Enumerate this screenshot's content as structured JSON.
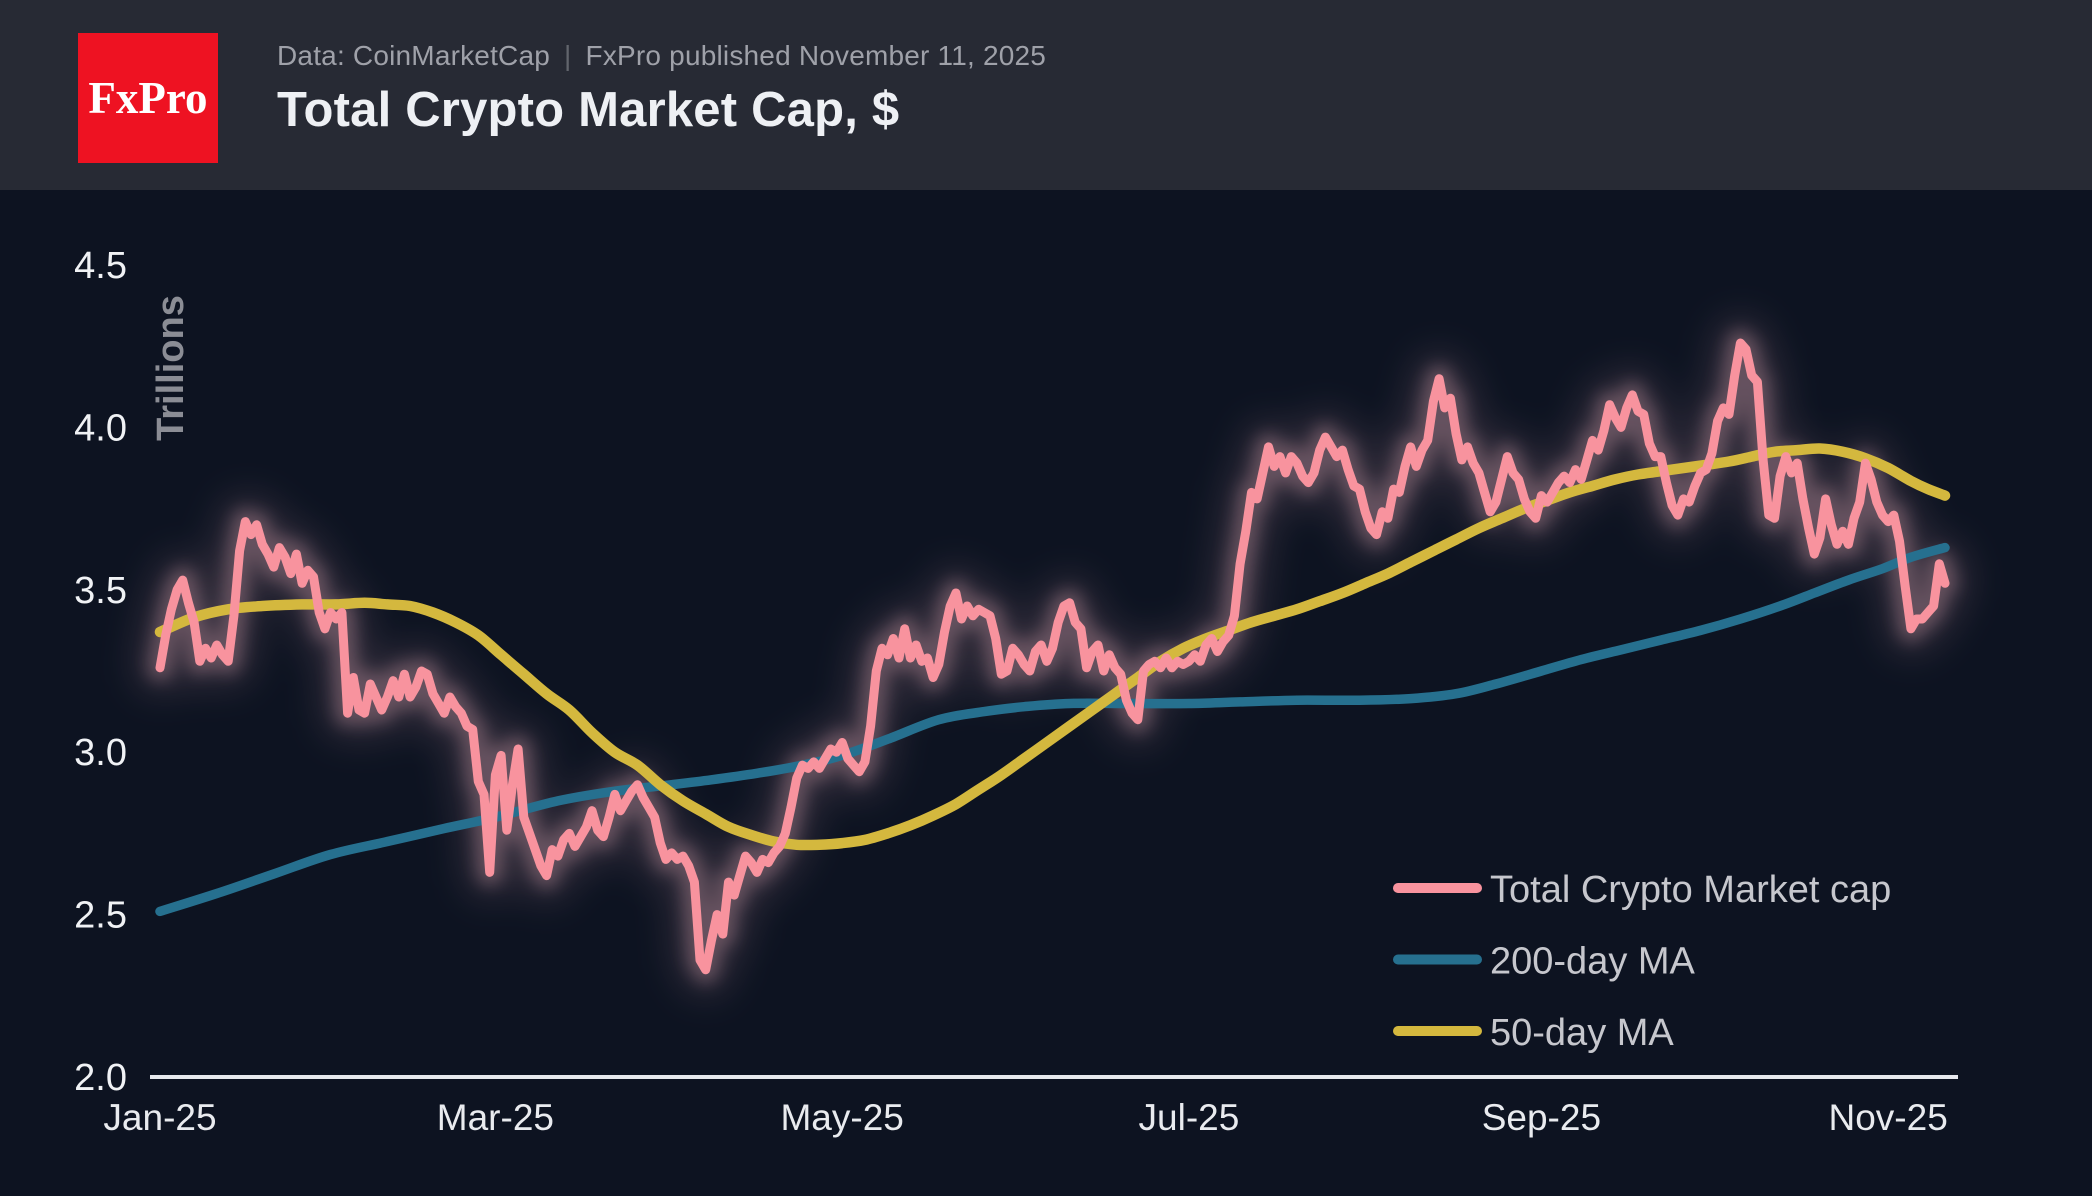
{
  "header": {
    "logo_text": "FxPro",
    "source": {
      "data_source": "Data: CoinMarketCap",
      "separator": "|",
      "published": "FxPro published November 11, 2025"
    },
    "title": "Total Crypto Market Cap, $"
  },
  "legend": {
    "items": [
      {
        "label": "Total Crypto Market cap",
        "color": "#f8939e"
      },
      {
        "label": "200-day MA",
        "color": "#26708f"
      },
      {
        "label": "50-day MA",
        "color": "#d4b83e"
      }
    ]
  },
  "colors": {
    "header_bg": "#272a34",
    "chart_bg": "#0d1321",
    "logo_red": "#ee1222",
    "market_cap_line": "#f8939e",
    "market_cap_glow": "#e3a9b6",
    "ma200_line": "#26708f",
    "ma50_line": "#d4b83e",
    "axis_line": "#e7e9ee",
    "y_tick_text": "#f0f2f5",
    "x_tick_text": "#e9ebef",
    "y_axis_title_text": "#8b8d95",
    "legend_text": "#c6c7cd"
  },
  "chart_data": {
    "type": "line",
    "title": "Total Crypto Market Cap, $",
    "ylabel": "Trillions",
    "units": "trillions USD",
    "x_start_date": "2025-01-01",
    "x_end_date": "2025-11-11",
    "total_days": 315,
    "ylim": [
      2.0,
      4.5
    ],
    "y_ticks": [
      4.5,
      4.0,
      3.5,
      3.0,
      2.5,
      2.0
    ],
    "x_tick_labels": [
      "Jan-25",
      "Mar-25",
      "May-25",
      "Jul-25",
      "Sep-25",
      "Nov-25"
    ],
    "x_tick_day_offsets": [
      0,
      59,
      120,
      181,
      243,
      304
    ],
    "grid": false,
    "legend_position": "bottom-right",
    "series": [
      {
        "name": "Total Crypto Market cap",
        "color": "#f8939e",
        "sampling": "daily",
        "values": [
          3.26,
          3.36,
          3.44,
          3.5,
          3.53,
          3.46,
          3.4,
          3.28,
          3.32,
          3.29,
          3.33,
          3.3,
          3.28,
          3.42,
          3.62,
          3.71,
          3.67,
          3.7,
          3.64,
          3.61,
          3.57,
          3.63,
          3.6,
          3.55,
          3.61,
          3.52,
          3.56,
          3.54,
          3.43,
          3.38,
          3.43,
          3.41,
          3.43,
          3.12,
          3.23,
          3.13,
          3.12,
          3.21,
          3.17,
          3.13,
          3.17,
          3.22,
          3.17,
          3.24,
          3.17,
          3.2,
          3.25,
          3.24,
          3.18,
          3.15,
          3.12,
          3.17,
          3.14,
          3.12,
          3.08,
          3.07,
          2.91,
          2.87,
          2.63,
          2.93,
          2.99,
          2.76,
          2.9,
          3.01,
          2.8,
          2.75,
          2.7,
          2.65,
          2.62,
          2.7,
          2.68,
          2.73,
          2.75,
          2.71,
          2.74,
          2.77,
          2.82,
          2.76,
          2.74,
          2.8,
          2.87,
          2.82,
          2.85,
          2.88,
          2.9,
          2.86,
          2.83,
          2.8,
          2.72,
          2.67,
          2.69,
          2.67,
          2.68,
          2.65,
          2.6,
          2.36,
          2.33,
          2.42,
          2.5,
          2.44,
          2.6,
          2.56,
          2.62,
          2.68,
          2.66,
          2.63,
          2.67,
          2.66,
          2.69,
          2.71,
          2.75,
          2.83,
          2.92,
          2.96,
          2.95,
          2.97,
          2.95,
          2.98,
          3.01,
          3.0,
          3.03,
          2.98,
          2.96,
          2.94,
          2.97,
          3.08,
          3.25,
          3.32,
          3.3,
          3.35,
          3.29,
          3.38,
          3.29,
          3.33,
          3.28,
          3.29,
          3.23,
          3.27,
          3.37,
          3.45,
          3.49,
          3.41,
          3.45,
          3.42,
          3.44,
          3.43,
          3.42,
          3.35,
          3.24,
          3.25,
          3.32,
          3.3,
          3.27,
          3.25,
          3.31,
          3.33,
          3.28,
          3.32,
          3.4,
          3.45,
          3.46,
          3.4,
          3.38,
          3.26,
          3.31,
          3.33,
          3.25,
          3.3,
          3.26,
          3.24,
          3.16,
          3.12,
          3.1,
          3.25,
          3.27,
          3.28,
          3.26,
          3.29,
          3.26,
          3.28,
          3.27,
          3.28,
          3.3,
          3.28,
          3.33,
          3.35,
          3.31,
          3.34,
          3.36,
          3.42,
          3.58,
          3.68,
          3.8,
          3.78,
          3.86,
          3.94,
          3.88,
          3.91,
          3.86,
          3.91,
          3.89,
          3.85,
          3.83,
          3.86,
          3.93,
          3.97,
          3.94,
          3.91,
          3.93,
          3.87,
          3.82,
          3.81,
          3.74,
          3.69,
          3.67,
          3.74,
          3.72,
          3.81,
          3.8,
          3.88,
          3.94,
          3.88,
          3.93,
          3.96,
          4.08,
          4.15,
          4.06,
          4.09,
          3.98,
          3.9,
          3.94,
          3.89,
          3.86,
          3.8,
          3.74,
          3.77,
          3.84,
          3.91,
          3.86,
          3.84,
          3.78,
          3.74,
          3.72,
          3.79,
          3.77,
          3.8,
          3.83,
          3.85,
          3.83,
          3.87,
          3.84,
          3.9,
          3.96,
          3.93,
          3.99,
          4.07,
          4.03,
          4.0,
          4.06,
          4.1,
          4.05,
          4.04,
          3.95,
          3.91,
          3.91,
          3.83,
          3.76,
          3.73,
          3.78,
          3.77,
          3.82,
          3.86,
          3.87,
          3.92,
          4.02,
          4.06,
          4.04,
          4.16,
          4.26,
          4.24,
          4.16,
          4.14,
          3.9,
          3.73,
          3.72,
          3.85,
          3.91,
          3.86,
          3.89,
          3.78,
          3.69,
          3.61,
          3.66,
          3.78,
          3.7,
          3.64,
          3.68,
          3.64,
          3.72,
          3.77,
          3.89,
          3.84,
          3.77,
          3.73,
          3.71,
          3.73,
          3.65,
          3.51,
          3.38,
          3.41,
          3.41,
          3.43,
          3.45,
          3.58,
          3.52
        ]
      },
      {
        "name": "200-day MA",
        "color": "#26708f",
        "sampling": "day-offset points [day, value]",
        "points": [
          [
            0,
            2.51
          ],
          [
            10,
            2.565
          ],
          [
            20,
            2.625
          ],
          [
            30,
            2.685
          ],
          [
            40,
            2.725
          ],
          [
            50,
            2.765
          ],
          [
            59,
            2.8
          ],
          [
            70,
            2.85
          ],
          [
            80,
            2.88
          ],
          [
            90,
            2.9
          ],
          [
            97,
            2.915
          ],
          [
            105,
            2.935
          ],
          [
            113,
            2.96
          ],
          [
            120,
            2.99
          ],
          [
            128,
            3.04
          ],
          [
            137,
            3.1
          ],
          [
            145,
            3.125
          ],
          [
            152,
            3.14
          ],
          [
            160,
            3.15
          ],
          [
            170,
            3.15
          ],
          [
            181,
            3.15
          ],
          [
            190,
            3.155
          ],
          [
            200,
            3.16
          ],
          [
            211,
            3.16
          ],
          [
            220,
            3.165
          ],
          [
            228,
            3.18
          ],
          [
            235,
            3.21
          ],
          [
            243,
            3.25
          ],
          [
            250,
            3.285
          ],
          [
            257,
            3.315
          ],
          [
            264,
            3.345
          ],
          [
            271,
            3.375
          ],
          [
            278,
            3.41
          ],
          [
            285,
            3.45
          ],
          [
            291,
            3.49
          ],
          [
            297,
            3.53
          ],
          [
            303,
            3.565
          ],
          [
            308,
            3.6
          ],
          [
            314,
            3.63
          ]
        ]
      },
      {
        "name": "50-day MA",
        "color": "#d4b83e",
        "sampling": "day-offset points [day, value]",
        "points": [
          [
            0,
            3.37
          ],
          [
            6,
            3.415
          ],
          [
            12,
            3.44
          ],
          [
            18,
            3.45
          ],
          [
            25,
            3.455
          ],
          [
            31,
            3.455
          ],
          [
            36,
            3.46
          ],
          [
            40,
            3.455
          ],
          [
            44,
            3.45
          ],
          [
            48,
            3.43
          ],
          [
            52,
            3.4
          ],
          [
            56,
            3.36
          ],
          [
            60,
            3.3
          ],
          [
            64,
            3.24
          ],
          [
            68,
            3.18
          ],
          [
            72,
            3.13
          ],
          [
            76,
            3.06
          ],
          [
            80,
            3.0
          ],
          [
            84,
            2.96
          ],
          [
            88,
            2.9
          ],
          [
            92,
            2.85
          ],
          [
            96,
            2.81
          ],
          [
            100,
            2.77
          ],
          [
            104,
            2.745
          ],
          [
            108,
            2.725
          ],
          [
            112,
            2.715
          ],
          [
            116,
            2.715
          ],
          [
            120,
            2.72
          ],
          [
            124,
            2.73
          ],
          [
            128,
            2.75
          ],
          [
            132,
            2.775
          ],
          [
            136,
            2.805
          ],
          [
            140,
            2.84
          ],
          [
            144,
            2.885
          ],
          [
            148,
            2.93
          ],
          [
            152,
            2.98
          ],
          [
            156,
            3.03
          ],
          [
            160,
            3.08
          ],
          [
            164,
            3.13
          ],
          [
            168,
            3.18
          ],
          [
            172,
            3.23
          ],
          [
            176,
            3.28
          ],
          [
            180,
            3.32
          ],
          [
            184,
            3.35
          ],
          [
            188,
            3.375
          ],
          [
            192,
            3.4
          ],
          [
            196,
            3.42
          ],
          [
            200,
            3.44
          ],
          [
            204,
            3.465
          ],
          [
            208,
            3.49
          ],
          [
            212,
            3.52
          ],
          [
            216,
            3.55
          ],
          [
            220,
            3.585
          ],
          [
            224,
            3.62
          ],
          [
            228,
            3.655
          ],
          [
            232,
            3.69
          ],
          [
            236,
            3.72
          ],
          [
            240,
            3.75
          ],
          [
            244,
            3.775
          ],
          [
            248,
            3.8
          ],
          [
            252,
            3.82
          ],
          [
            256,
            3.84
          ],
          [
            260,
            3.855
          ],
          [
            264,
            3.865
          ],
          [
            268,
            3.875
          ],
          [
            272,
            3.885
          ],
          [
            276,
            3.895
          ],
          [
            280,
            3.91
          ],
          [
            284,
            3.925
          ],
          [
            288,
            3.93
          ],
          [
            292,
            3.935
          ],
          [
            296,
            3.925
          ],
          [
            300,
            3.905
          ],
          [
            304,
            3.875
          ],
          [
            308,
            3.835
          ],
          [
            311,
            3.81
          ],
          [
            314,
            3.79
          ]
        ]
      }
    ]
  }
}
